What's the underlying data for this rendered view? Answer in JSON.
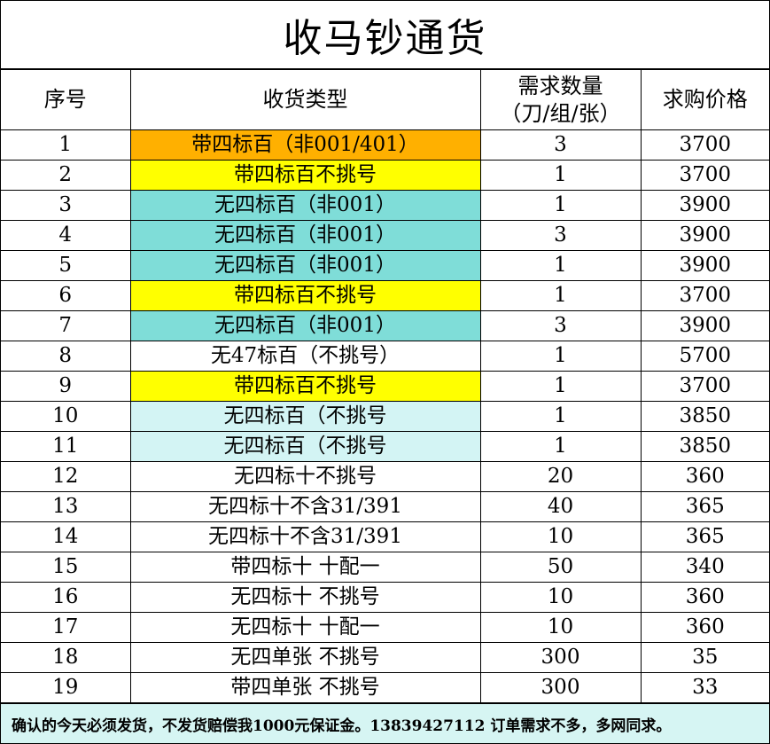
{
  "title": "收马钞通货",
  "headers": {
    "index": "序号",
    "type": "收货类型",
    "qty_line1": "需求数量",
    "qty_line2": "（刀/组/张）",
    "price": "求购价格"
  },
  "colors": {
    "orange": "#ffb000",
    "yellow": "#ffff00",
    "teal": "#7fddd8",
    "lightcyan": "#d3f4f4",
    "footer_bg": "#d6f5f3"
  },
  "rows": [
    {
      "index": "1",
      "type": "带四标百（非001/401）",
      "qty": "3",
      "price": "3700",
      "highlight": "orange"
    },
    {
      "index": "2",
      "type": "带四标百不挑号",
      "qty": "1",
      "price": "3700",
      "highlight": "yellow"
    },
    {
      "index": "3",
      "type": "无四标百（非001）",
      "qty": "1",
      "price": "3900",
      "highlight": "teal"
    },
    {
      "index": "4",
      "type": "无四标百（非001）",
      "qty": "3",
      "price": "3900",
      "highlight": "teal"
    },
    {
      "index": "5",
      "type": "无四标百（非001）",
      "qty": "1",
      "price": "3900",
      "highlight": "teal"
    },
    {
      "index": "6",
      "type": "带四标百不挑号",
      "qty": "1",
      "price": "3700",
      "highlight": "yellow"
    },
    {
      "index": "7",
      "type": "无四标百（非001）",
      "qty": "3",
      "price": "3900",
      "highlight": "teal"
    },
    {
      "index": "8",
      "type": "无47标百（不挑号）",
      "qty": "1",
      "price": "5700",
      "highlight": ""
    },
    {
      "index": "9",
      "type": "带四标百不挑号",
      "qty": "1",
      "price": "3700",
      "highlight": "yellow"
    },
    {
      "index": "10",
      "type": "无四标百（不挑号",
      "qty": "1",
      "price": "3850",
      "highlight": "lightcyan"
    },
    {
      "index": "11",
      "type": "无四标百（不挑号",
      "qty": "1",
      "price": "3850",
      "highlight": "lightcyan"
    },
    {
      "index": "12",
      "type": "无四标十不挑号",
      "qty": "20",
      "price": "360",
      "highlight": ""
    },
    {
      "index": "13",
      "type": "无四标十不含31/391",
      "qty": "40",
      "price": "365",
      "highlight": ""
    },
    {
      "index": "14",
      "type": "无四标十不含31/391",
      "qty": "10",
      "price": "365",
      "highlight": ""
    },
    {
      "index": "15",
      "type": "带四标十 十配一",
      "qty": "50",
      "price": "340",
      "highlight": ""
    },
    {
      "index": "16",
      "type": "无四标十 不挑号",
      "qty": "10",
      "price": "360",
      "highlight": ""
    },
    {
      "index": "17",
      "type": "无四标十 十配一",
      "qty": "10",
      "price": "360",
      "highlight": ""
    },
    {
      "index": "18",
      "type": "无四单张 不挑号",
      "qty": "300",
      "price": "35",
      "highlight": ""
    },
    {
      "index": "19",
      "type": "带四单张 不挑号",
      "qty": "300",
      "price": "33",
      "highlight": ""
    }
  ],
  "footer": "确认的今天必须发货，不发货赔偿我1000元保证金。13839427112  订单需求不多，多网同求。"
}
